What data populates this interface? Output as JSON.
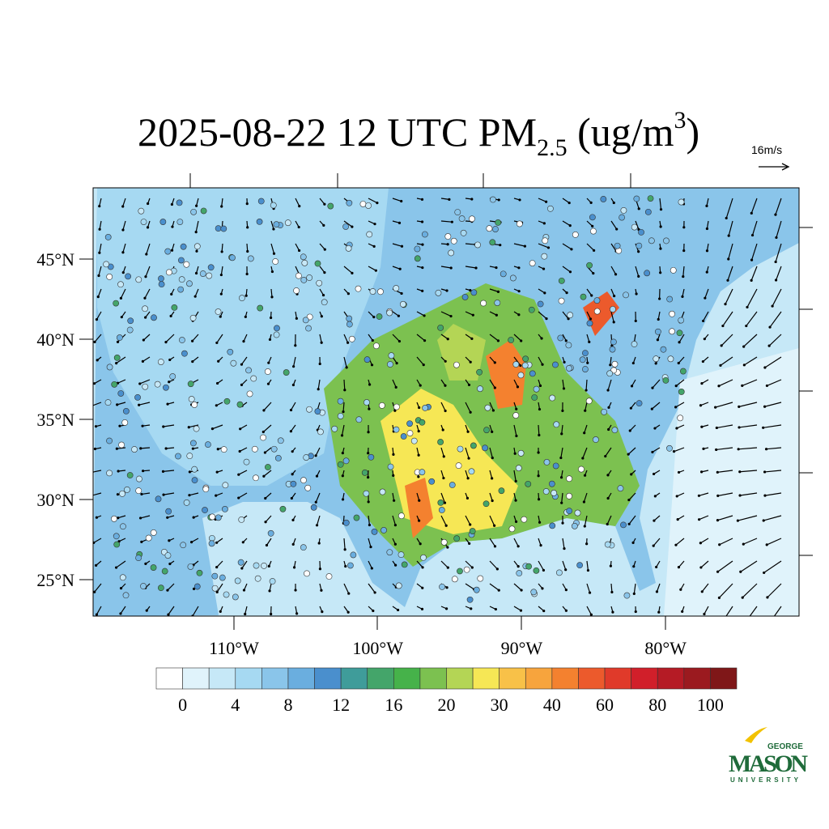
{
  "title": {
    "main": "2025-08-22 12 UTC PM",
    "sub": "2.5",
    "unit": " (ug/m",
    "sup": "3",
    "end": ")"
  },
  "wind_scale": "16m/s",
  "lat_labels": [
    "45°N",
    "40°N",
    "35°N",
    "30°N",
    "25°N"
  ],
  "lon_labels": [
    "110°W",
    "100°W",
    "90°W",
    "80°W"
  ],
  "colorbar": {
    "colors": [
      "#ffffff",
      "#e0f3fb",
      "#c6e8f7",
      "#a6d9f2",
      "#8ac5ea",
      "#6aaedf",
      "#4a8fcd",
      "#3f9c9a",
      "#44a56a",
      "#46b24a",
      "#7cc150",
      "#b4d555",
      "#f6e755",
      "#f8c148",
      "#f7a43d",
      "#f4812f",
      "#ec5a2c",
      "#e03a2a",
      "#d11f2a",
      "#b51b25",
      "#9b1a1f",
      "#7f1718"
    ],
    "ticks": [
      0,
      4,
      8,
      12,
      16,
      20,
      30,
      40,
      60,
      80,
      100
    ]
  },
  "logo": {
    "top": "GEORGE",
    "name": "MASON",
    "bottom": "UNIVERSITY"
  }
}
